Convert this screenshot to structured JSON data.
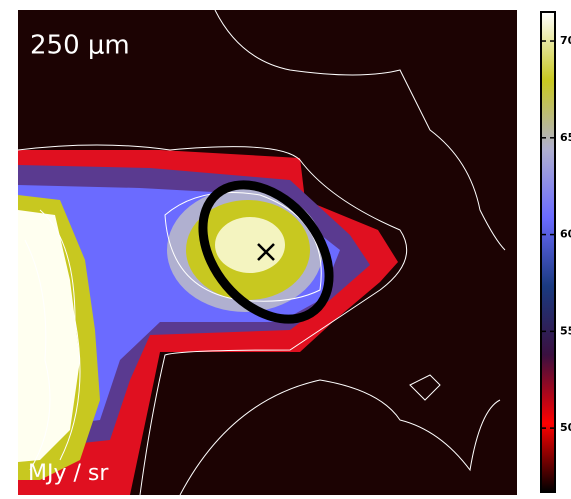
{
  "chart_data": {
    "type": "heatmap",
    "title": "250 μm",
    "unit_label": "MJy / sr",
    "colormap": [
      "#000000",
      "#ff0000",
      "#3a1040",
      "#1a3a80",
      "#6b6bff",
      "#b0b0d0",
      "#c8c820",
      "#ffffff"
    ],
    "colorbar": {
      "lim": [
        46.7,
        71.5
      ],
      "ticks": [
        50,
        55,
        60,
        65,
        70
      ]
    }
  }
}
